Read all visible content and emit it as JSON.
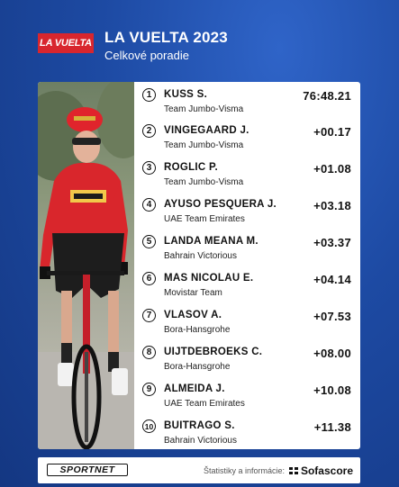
{
  "header": {
    "logo_text": "LA VUELTA",
    "title": "LA VUELTA 2023",
    "subtitle": "Celkové poradie"
  },
  "standings": [
    {
      "rank": "1",
      "name": "KUSS S.",
      "team": "Team Jumbo-Visma",
      "time": "76:48.21"
    },
    {
      "rank": "2",
      "name": "VINGEGAARD J.",
      "team": "Team Jumbo-Visma",
      "time": "+00.17"
    },
    {
      "rank": "3",
      "name": "ROGLIC P.",
      "team": "Team Jumbo-Visma",
      "time": "+01.08"
    },
    {
      "rank": "4",
      "name": "AYUSO PESQUERA J.",
      "team": "UAE Team Emirates",
      "time": "+03.18"
    },
    {
      "rank": "5",
      "name": "LANDA MEANA M.",
      "team": "Bahrain Victorious",
      "time": "+03.37"
    },
    {
      "rank": "6",
      "name": "MAS NICOLAU E.",
      "team": "Movistar Team",
      "time": "+04.14"
    },
    {
      "rank": "7",
      "name": "VLASOV A.",
      "team": "Bora-Hansgrohe",
      "time": "+07.53"
    },
    {
      "rank": "8",
      "name": "UIJTDEBROEKS C.",
      "team": "Bora-Hansgrohe",
      "time": "+08.00"
    },
    {
      "rank": "9",
      "name": "ALMEIDA J.",
      "team": "UAE Team Emirates",
      "time": "+10.08"
    },
    {
      "rank": "10",
      "name": "BUITRAGO S.",
      "team": "Bahrain Victorious",
      "time": "+11.38"
    }
  ],
  "footer": {
    "brand": "SPORTNET",
    "credit_text": "Štatistiky a informácie:",
    "sofascore_label": "Sofascore"
  },
  "colors": {
    "background": "#1d4aa3",
    "logo_red": "#d8262e",
    "jersey_red": "#d9262c"
  }
}
